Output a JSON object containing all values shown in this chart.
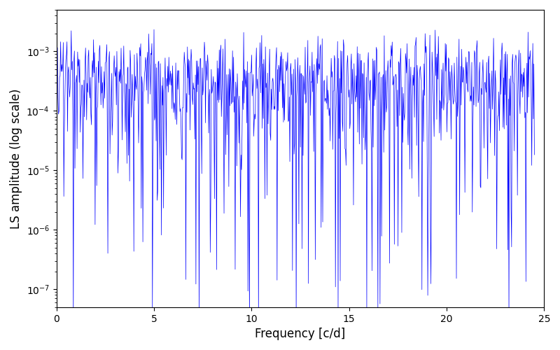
{
  "title": "",
  "xlabel": "Frequency [c/d]",
  "ylabel": "LS amplitude (log scale)",
  "line_color": "#0000ff",
  "line_width": 0.5,
  "xlim": [
    0,
    25
  ],
  "ylim": [
    5e-08,
    0.005
  ],
  "yticks": [
    1e-07,
    1e-06,
    1e-05,
    0.0001,
    0.001
  ],
  "xticks": [
    0,
    5,
    10,
    15,
    20,
    25
  ],
  "n_points": 900,
  "freq_max": 24.5,
  "seed": 12345,
  "background_color": "#ffffff",
  "figsize": [
    8.0,
    5.0
  ],
  "dpi": 100
}
